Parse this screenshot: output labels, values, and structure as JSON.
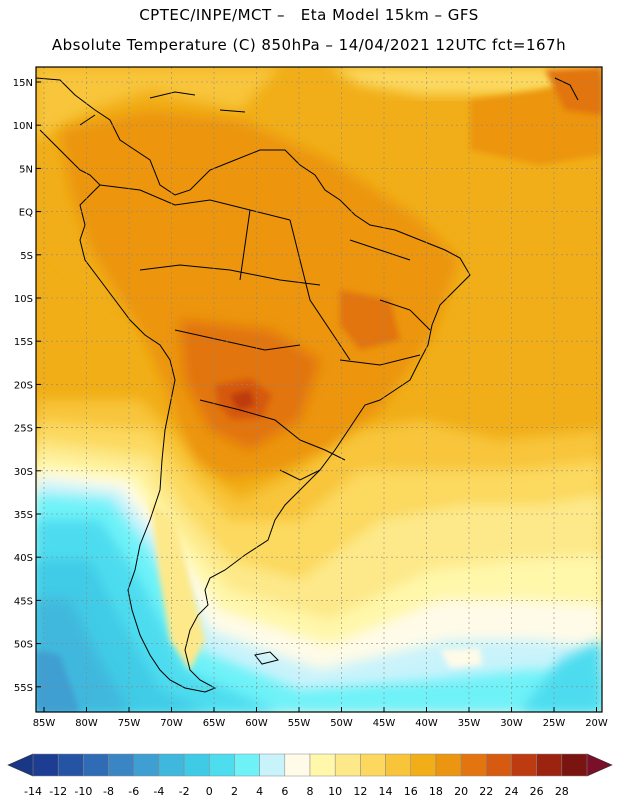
{
  "header": {
    "line1": "CPTEC/INPE/MCT –   Eta Model 15km – GFS",
    "line2": "Absolute Temperature (C) 850hPa – 14/04/2021 12UTC fct=167h"
  },
  "map": {
    "lat_labels": [
      "15N",
      "10N",
      "5N",
      "EQ",
      "5S",
      "10S",
      "15S",
      "20S",
      "25S",
      "30S",
      "35S",
      "40S",
      "45S",
      "50S",
      "55S"
    ],
    "lon_labels": [
      "85W",
      "80W",
      "75W",
      "70W",
      "65W",
      "60W",
      "55W",
      "50W",
      "45W",
      "40W",
      "35W",
      "30W",
      "25W",
      "20W"
    ]
  },
  "colorbar": {
    "labels": [
      "-14",
      "-12",
      "-10",
      "-8",
      "-6",
      "-4",
      "-2",
      "0",
      "2",
      "4",
      "6",
      "8",
      "10",
      "12",
      "14",
      "16",
      "18",
      "20",
      "22",
      "24",
      "26",
      "28"
    ],
    "colors": [
      "#1d3d93",
      "#2554a4",
      "#2f6cb5",
      "#3a86c4",
      "#3f9fd2",
      "#40b8dd",
      "#3fcbe6",
      "#4edcef",
      "#6ef2f8",
      "#c9f3fb",
      "#fffbe8",
      "#fff7aa",
      "#fde98a",
      "#fcd95e",
      "#f8c53a",
      "#f1ae18",
      "#ec9510",
      "#e27510",
      "#d65a10",
      "#bd3b10",
      "#9c2310",
      "#7a1410"
    ],
    "low_color": "#183886",
    "high_color": "#7a0f2a"
  }
}
